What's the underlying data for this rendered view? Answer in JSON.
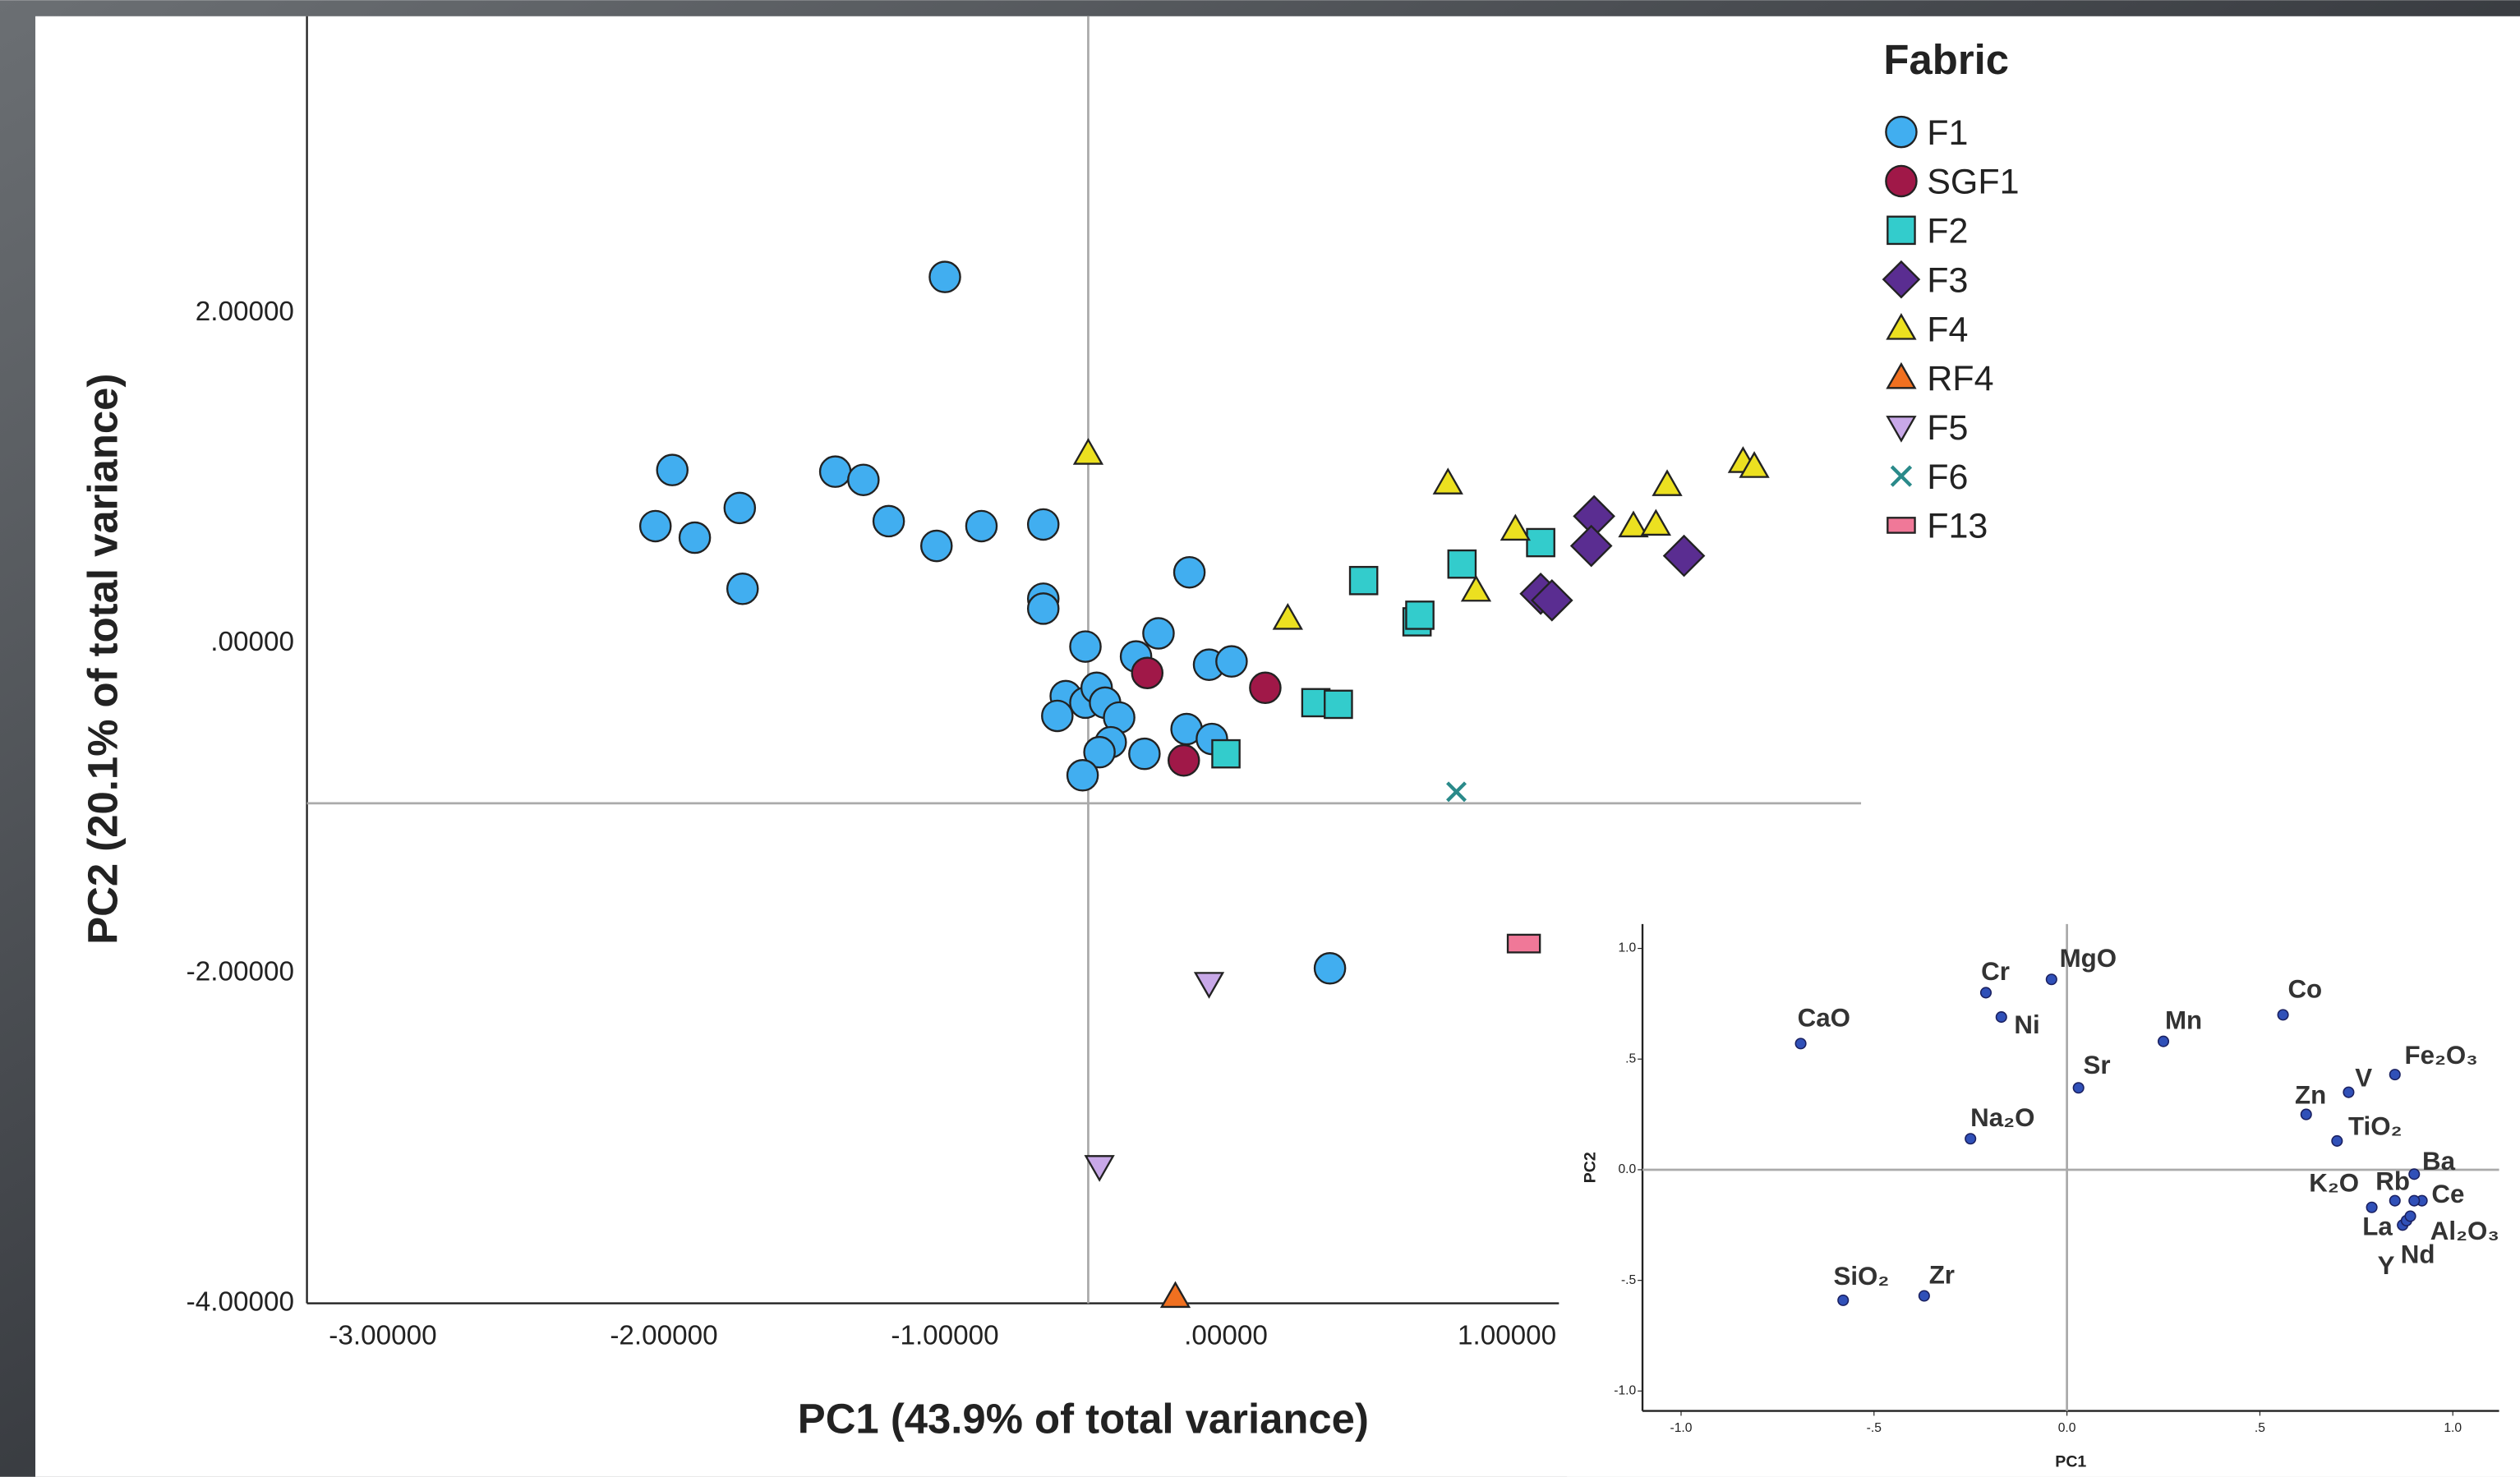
{
  "chart_data": [
    {
      "type": "scatter",
      "x_label": "PC1 (43.9% of total variance)",
      "y_label": "PC2 (20.1% of total variance)",
      "legend_title": "Fabric",
      "legend": "right",
      "xlim": [
        -3.27,
        2.26
      ],
      "ylim": [
        -4,
        3.8
      ],
      "xticks": [
        {
          "value": -3,
          "label": "-3.00000"
        },
        {
          "value": -2,
          "label": "-2.00000"
        },
        {
          "value": -1,
          "label": "-1.00000"
        },
        {
          "value": 0,
          "label": ".00000"
        },
        {
          "value": 1,
          "label": "1.00000"
        }
      ],
      "yticks": [
        {
          "value": -4,
          "label": "-4.00000"
        },
        {
          "value": -2,
          "label": "-2.00000"
        },
        {
          "value": 0,
          "label": ".00000"
        },
        {
          "value": 2,
          "label": "2.00000"
        }
      ],
      "reference_lines": {
        "x": -0.49,
        "y": -0.97
      },
      "series": [
        {
          "name": "F1",
          "color": "#41aef0",
          "marker": "circle",
          "x": [
            -1.0,
            -1.97,
            -2.03,
            -1.89,
            -1.73,
            -1.72,
            -1.39,
            -1.29,
            -1.2,
            -1.03,
            -0.87,
            -0.65,
            -0.65,
            -0.65,
            -0.13,
            -0.5,
            -0.24,
            -0.32,
            -0.06,
            0.02,
            -0.57,
            -0.5,
            -0.46,
            -0.6,
            -0.43,
            -0.38,
            -0.41,
            -0.45,
            -0.29,
            -0.14,
            -0.05,
            -0.51,
            0.37
          ],
          "values": [
            2.22,
            1.05,
            0.71,
            0.64,
            0.82,
            0.33,
            1.04,
            0.99,
            0.74,
            0.59,
            0.71,
            0.72,
            0.27,
            0.21,
            0.43,
            -0.02,
            0.06,
            -0.08,
            -0.13,
            -0.11,
            -0.32,
            -0.36,
            -0.27,
            -0.44,
            -0.36,
            -0.45,
            -0.6,
            -0.66,
            -0.67,
            -0.52,
            -0.58,
            -0.8,
            -1.97
          ]
        },
        {
          "name": "SGF1",
          "color": "#a01848",
          "marker": "circle",
          "x": [
            -0.28,
            0.14,
            -0.15
          ],
          "values": [
            -0.18,
            -0.27,
            -0.71
          ]
        },
        {
          "name": "F2",
          "color": "#33cccc",
          "marker": "square",
          "x": [
            0.0,
            0.32,
            0.4,
            0.49,
            0.68,
            0.69,
            0.84,
            1.12
          ],
          "values": [
            -0.67,
            -0.36,
            -0.37,
            0.38,
            0.13,
            0.17,
            0.48,
            0.61
          ]
        },
        {
          "name": "F3",
          "color": "#5a2d91",
          "marker": "diamond",
          "x": [
            1.31,
            1.3,
            1.12,
            1.16,
            1.63
          ],
          "values": [
            0.77,
            0.59,
            0.3,
            0.26,
            0.53
          ]
        },
        {
          "name": "F4",
          "color": "#ece020",
          "marker": "triangle-up",
          "x": [
            -0.49,
            0.22,
            0.79,
            1.03,
            0.89,
            1.45,
            1.53,
            1.57,
            1.84,
            1.88
          ],
          "values": [
            1.15,
            0.15,
            0.97,
            0.69,
            0.32,
            0.71,
            0.72,
            0.96,
            1.1,
            1.07
          ]
        },
        {
          "name": "RF4",
          "color": "#f07020",
          "marker": "triangle-up",
          "x": [
            -0.18
          ],
          "values": [
            -3.96
          ]
        },
        {
          "name": "F5",
          "color": "#c8a8e8",
          "marker": "triangle-down",
          "x": [
            -0.06,
            -0.45
          ],
          "values": [
            -2.06,
            -3.17
          ]
        },
        {
          "name": "F6",
          "color": "#2a8a8a",
          "marker": "x",
          "x": [
            0.82
          ],
          "values": [
            -0.9
          ]
        },
        {
          "name": "F13",
          "color": "#f07898",
          "marker": "rect",
          "x": [
            1.06
          ],
          "values": [
            -1.82
          ]
        }
      ]
    },
    {
      "type": "scatter",
      "x_label": "PC1",
      "y_label": "PC2",
      "xlim": [
        -1.1,
        1.12
      ],
      "ylim": [
        -1.09,
        1.11
      ],
      "xticks": [
        {
          "value": -1,
          "label": "-1.0"
        },
        {
          "value": -0.5,
          "label": "-.5"
        },
        {
          "value": 0,
          "label": "0.0"
        },
        {
          "value": 0.5,
          "label": ".5"
        },
        {
          "value": 1,
          "label": "1.0"
        }
      ],
      "yticks": [
        {
          "value": -1,
          "label": "-1.0"
        },
        {
          "value": -0.5,
          "label": "-.5"
        },
        {
          "value": 0,
          "label": "0.0"
        },
        {
          "value": 0.5,
          "label": ".5"
        },
        {
          "value": 1,
          "label": "1.0"
        }
      ],
      "reference_lines": {
        "x": 0,
        "y": 0
      },
      "series": [
        {
          "color": "#3050b8",
          "marker": "dot",
          "point_labels": [
            "CaO",
            "Cr",
            "Ni",
            "MgO",
            "Sr",
            "Mn",
            "Co",
            "Na₂O",
            "Fe₂O₃",
            "V",
            "Zn",
            "TiO₂",
            "Ba",
            "K₂O",
            "Rb",
            "Ce",
            "Al₂O₃",
            "La",
            "Y",
            "Nd",
            "SiO₂",
            "Zr"
          ],
          "x": [
            -0.69,
            -0.21,
            -0.17,
            -0.04,
            0.03,
            0.25,
            0.56,
            -0.25,
            0.85,
            0.73,
            0.62,
            0.7,
            0.9,
            0.79,
            0.85,
            0.92,
            0.9,
            0.87,
            0.88,
            0.89,
            -0.58,
            -0.37
          ],
          "values": [
            0.57,
            0.8,
            0.69,
            0.86,
            0.37,
            0.58,
            0.7,
            0.14,
            0.43,
            0.35,
            0.25,
            0.13,
            -0.02,
            -0.17,
            -0.14,
            -0.14,
            -0.14,
            -0.25,
            -0.23,
            -0.21,
            -0.59,
            -0.57
          ]
        }
      ]
    }
  ]
}
